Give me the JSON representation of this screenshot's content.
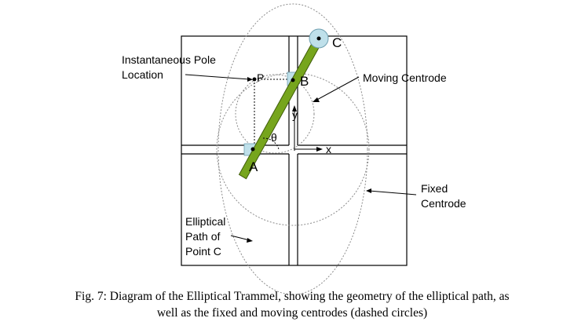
{
  "labels": {
    "pole_line1": "Instantaneous Pole",
    "pole_line2": "Location",
    "moving_centrode": "Moving Centrode",
    "fixed_line1": "Fixed",
    "fixed_line2": "Centrode",
    "ellip_line1": "Elliptical",
    "ellip_line2": "Path of",
    "ellip_line3": "Point C",
    "point_p": "P",
    "point_b": "B",
    "point_c": "C",
    "point_a": "A",
    "axis_x": "x",
    "axis_y": "y",
    "angle": "θ"
  },
  "caption": {
    "line1": "Fig. 7: Diagram of the Elliptical Trammel, showing the geometry of the elliptical path, as",
    "line2": "well as the fixed and moving centrodes (dashed circles)"
  },
  "colors": {
    "rod_fill": "#76a51d",
    "rod_stroke": "#3f5c0a",
    "slider_fill": "#bfe0ea",
    "slider_stroke": "#6f9fb0",
    "line": "#000000",
    "dash": "#8c8c8c"
  }
}
